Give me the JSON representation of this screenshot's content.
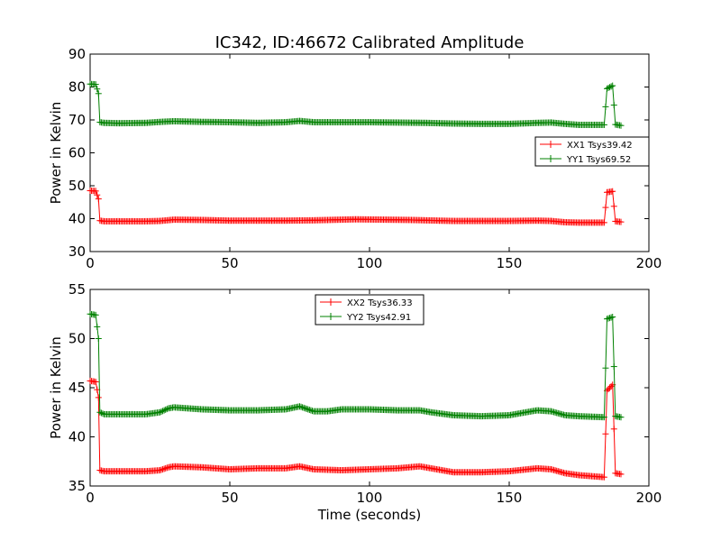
{
  "figure": {
    "title": "IC342, ID:46672 Calibrated Amplitude"
  },
  "colors": {
    "red": "#ff0000",
    "green": "#008000"
  },
  "chart_data": [
    {
      "type": "line",
      "title": "IC342, ID:46672 Calibrated Amplitude",
      "xlabel": "",
      "ylabel": "Power in Kelvin",
      "xlim": [
        0,
        200
      ],
      "ylim": [
        30,
        90
      ],
      "x_ticks": [
        "0",
        "50",
        "100",
        "150",
        "200"
      ],
      "y_ticks": [
        "30",
        "40",
        "50",
        "60",
        "70",
        "80",
        "90"
      ],
      "legend_position": "center-right",
      "grid": false,
      "series": [
        {
          "name": "XX1 Tsys39.42",
          "color": "#ff0000",
          "marker": "+",
          "points": [
            [
              0,
              48.5
            ],
            [
              2,
              48.4
            ],
            [
              3,
              46
            ],
            [
              3.5,
              39.4
            ],
            [
              5,
              39.2
            ],
            [
              10,
              39.2
            ],
            [
              20,
              39.2
            ],
            [
              25,
              39.3
            ],
            [
              30,
              39.7
            ],
            [
              40,
              39.6
            ],
            [
              50,
              39.4
            ],
            [
              60,
              39.4
            ],
            [
              70,
              39.4
            ],
            [
              80,
              39.5
            ],
            [
              85,
              39.6
            ],
            [
              95,
              39.8
            ],
            [
              105,
              39.7
            ],
            [
              115,
              39.6
            ],
            [
              120,
              39.5
            ],
            [
              130,
              39.3
            ],
            [
              140,
              39.3
            ],
            [
              150,
              39.3
            ],
            [
              160,
              39.4
            ],
            [
              165,
              39.3
            ],
            [
              170,
              38.9
            ],
            [
              175,
              38.8
            ],
            [
              184,
              38.8
            ],
            [
              185,
              48
            ],
            [
              187,
              48.3
            ],
            [
              188,
              39.2
            ],
            [
              190,
              39
            ]
          ]
        },
        {
          "name": "YY1 Tsys69.52",
          "color": "#008000",
          "marker": "+",
          "points": [
            [
              0,
              80.9
            ],
            [
              2,
              80.8
            ],
            [
              3,
              78
            ],
            [
              3.5,
              69.3
            ],
            [
              5,
              69.1
            ],
            [
              10,
              69
            ],
            [
              20,
              69.1
            ],
            [
              25,
              69.4
            ],
            [
              30,
              69.6
            ],
            [
              40,
              69.4
            ],
            [
              50,
              69.3
            ],
            [
              60,
              69.1
            ],
            [
              70,
              69.3
            ],
            [
              75,
              69.7
            ],
            [
              80,
              69.3
            ],
            [
              90,
              69.3
            ],
            [
              100,
              69.3
            ],
            [
              110,
              69.2
            ],
            [
              120,
              69.1
            ],
            [
              130,
              68.9
            ],
            [
              140,
              68.8
            ],
            [
              150,
              68.8
            ],
            [
              160,
              69.1
            ],
            [
              165,
              69.2
            ],
            [
              170,
              68.8
            ],
            [
              175,
              68.5
            ],
            [
              184,
              68.5
            ],
            [
              185,
              79.5
            ],
            [
              187,
              80.4
            ],
            [
              188,
              68.6
            ],
            [
              190,
              68.3
            ]
          ]
        }
      ]
    },
    {
      "type": "line",
      "title": "",
      "xlabel": "Time (seconds)",
      "ylabel": "Power in Kelvin",
      "xlim": [
        0,
        200
      ],
      "ylim": [
        35,
        55
      ],
      "x_ticks": [
        "0",
        "50",
        "100",
        "150",
        "200"
      ],
      "y_ticks": [
        "35",
        "40",
        "45",
        "50",
        "55"
      ],
      "legend_position": "top-center",
      "grid": false,
      "series": [
        {
          "name": "XX2 Tsys36.33",
          "color": "#ff0000",
          "marker": "+",
          "points": [
            [
              0,
              45.7
            ],
            [
              2,
              45.6
            ],
            [
              3,
              44
            ],
            [
              3.5,
              36.6
            ],
            [
              5,
              36.5
            ],
            [
              10,
              36.5
            ],
            [
              20,
              36.5
            ],
            [
              25,
              36.6
            ],
            [
              28,
              36.9
            ],
            [
              30,
              37
            ],
            [
              40,
              36.9
            ],
            [
              50,
              36.7
            ],
            [
              60,
              36.8
            ],
            [
              70,
              36.8
            ],
            [
              75,
              37
            ],
            [
              80,
              36.7
            ],
            [
              90,
              36.6
            ],
            [
              100,
              36.7
            ],
            [
              110,
              36.8
            ],
            [
              118,
              37
            ],
            [
              122,
              36.8
            ],
            [
              130,
              36.4
            ],
            [
              140,
              36.4
            ],
            [
              150,
              36.5
            ],
            [
              160,
              36.8
            ],
            [
              165,
              36.7
            ],
            [
              170,
              36.3
            ],
            [
              175,
              36.1
            ],
            [
              184,
              35.9
            ],
            [
              185,
              44.7
            ],
            [
              187,
              45.3
            ],
            [
              188,
              36.3
            ],
            [
              190,
              36.2
            ]
          ]
        },
        {
          "name": "YY2 Tsys42.91",
          "color": "#008000",
          "marker": "+",
          "points": [
            [
              0,
              52.5
            ],
            [
              2,
              52.4
            ],
            [
              3,
              50
            ],
            [
              3.5,
              42.5
            ],
            [
              5,
              42.3
            ],
            [
              10,
              42.3
            ],
            [
              20,
              42.3
            ],
            [
              25,
              42.5
            ],
            [
              28,
              42.9
            ],
            [
              30,
              43
            ],
            [
              40,
              42.8
            ],
            [
              50,
              42.7
            ],
            [
              60,
              42.7
            ],
            [
              70,
              42.8
            ],
            [
              75,
              43.1
            ],
            [
              80,
              42.6
            ],
            [
              85,
              42.6
            ],
            [
              90,
              42.8
            ],
            [
              100,
              42.8
            ],
            [
              110,
              42.7
            ],
            [
              118,
              42.7
            ],
            [
              122,
              42.5
            ],
            [
              130,
              42.2
            ],
            [
              140,
              42.1
            ],
            [
              150,
              42.2
            ],
            [
              160,
              42.7
            ],
            [
              165,
              42.6
            ],
            [
              170,
              42.2
            ],
            [
              175,
              42.1
            ],
            [
              184,
              42
            ],
            [
              185,
              52
            ],
            [
              187,
              52.2
            ],
            [
              188,
              42.1
            ],
            [
              190,
              42
            ]
          ]
        }
      ]
    }
  ]
}
